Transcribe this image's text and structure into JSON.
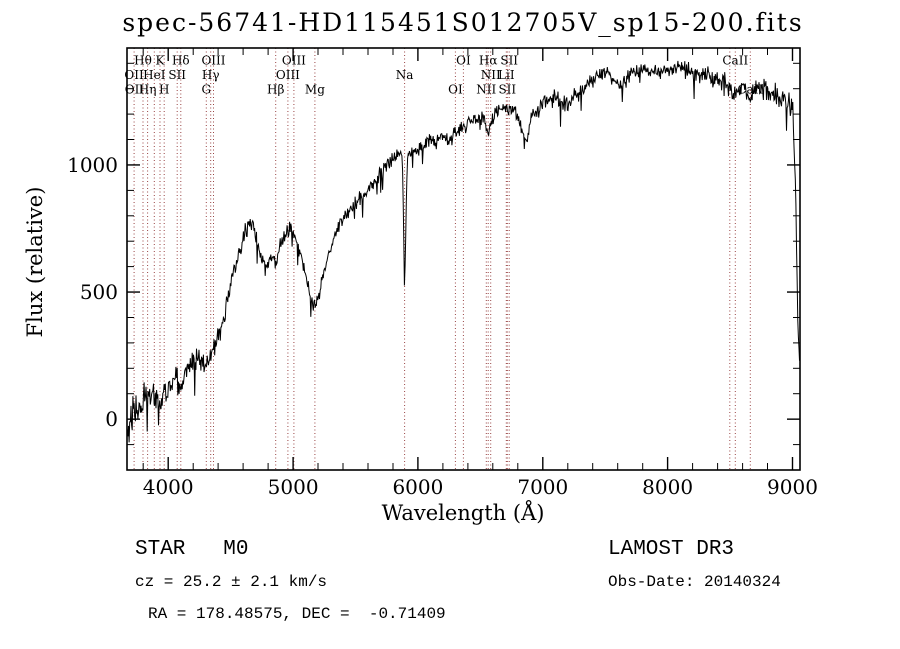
{
  "title": "spec-56741-HD115451S012705V_sp15-200.fits",
  "annotations": {
    "class_label": "STAR   M0",
    "survey": "LAMOST DR3",
    "cz": "cz = 25.2 ± 2.1 km/s",
    "obs_date": "Obs-Date: 20140324",
    "radec": "RA = 178.48575, DEC =  -0.71409"
  },
  "chart_data": {
    "type": "line",
    "title": "spec-56741-HD115451S012705V_sp15-200.fits",
    "xlabel": "Wavelength (Å)",
    "ylabel": "Flux (relative)",
    "xlim": [
      3670,
      9060
    ],
    "ylim": [
      -200,
      1460
    ],
    "x_ticks": [
      4000,
      5000,
      6000,
      7000,
      8000,
      9000
    ],
    "x_minor_step": 200,
    "y_ticks": [
      0,
      500,
      1000
    ],
    "y_minor_step": 100,
    "grid": false,
    "legend": false,
    "line_color": "#000000",
    "marker_color": "#994444",
    "spectral_line_markers": [
      3727,
      3798,
      3835,
      3889,
      3934,
      3968,
      4072,
      4101,
      4305,
      4340,
      4363,
      4861,
      4959,
      5007,
      5175,
      5893,
      6300,
      6364,
      6548,
      6563,
      6583,
      6708,
      6716,
      6731,
      8498,
      8542,
      8662
    ],
    "spectral_line_labels": [
      {
        "t": "Hθ",
        "wl": 3798,
        "row": 1
      },
      {
        "t": "K",
        "wl": 3934,
        "row": 1
      },
      {
        "t": "Hδ",
        "wl": 4101,
        "row": 1
      },
      {
        "t": "OIII",
        "wl": 4363,
        "row": 1
      },
      {
        "t": "OIII",
        "wl": 5007,
        "row": 1
      },
      {
        "t": "OI",
        "wl": 6364,
        "row": 1
      },
      {
        "t": "Hα",
        "wl": 6563,
        "row": 1
      },
      {
        "t": "SII",
        "wl": 6731,
        "row": 1
      },
      {
        "t": "CaII",
        "wl": 8542,
        "row": 1
      },
      {
        "t": "OII",
        "wl": 3727,
        "row": 2
      },
      {
        "t": "HeI",
        "wl": 3889,
        "row": 2
      },
      {
        "t": "SII",
        "wl": 4072,
        "row": 2
      },
      {
        "t": "Hγ",
        "wl": 4340,
        "row": 2
      },
      {
        "t": "OIII",
        "wl": 4959,
        "row": 2
      },
      {
        "t": "Na",
        "wl": 5893,
        "row": 2
      },
      {
        "t": "NII",
        "wl": 6583,
        "row": 2
      },
      {
        "t": "LiI",
        "wl": 6708,
        "row": 2
      },
      {
        "t": "OII",
        "wl": 3729,
        "row": 3
      },
      {
        "t": "Hη",
        "wl": 3835,
        "row": 3
      },
      {
        "t": "H",
        "wl": 3968,
        "row": 3
      },
      {
        "t": "G",
        "wl": 4305,
        "row": 3
      },
      {
        "t": "Hβ",
        "wl": 4861,
        "row": 3
      },
      {
        "t": "Mg",
        "wl": 5175,
        "row": 3
      },
      {
        "t": "OI",
        "wl": 6300,
        "row": 3
      },
      {
        "t": "NII",
        "wl": 6548,
        "row": 3
      },
      {
        "t": "SII",
        "wl": 6716,
        "row": 3
      },
      {
        "t": "CaII",
        "wl": 8662,
        "row": 3
      }
    ],
    "spectrum_envelope": [
      [
        3672,
        -80,
        40
      ],
      [
        3690,
        -30,
        55
      ],
      [
        3710,
        15,
        60
      ],
      [
        3730,
        60,
        55
      ],
      [
        3760,
        40,
        55
      ],
      [
        3800,
        72,
        50
      ],
      [
        3840,
        92,
        50
      ],
      [
        3880,
        100,
        45
      ],
      [
        3933,
        62,
        40
      ],
      [
        3970,
        100,
        45
      ],
      [
        4000,
        128,
        45
      ],
      [
        4040,
        150,
        42
      ],
      [
        4080,
        148,
        40
      ],
      [
        4101,
        122,
        36
      ],
      [
        4140,
        180,
        40
      ],
      [
        4180,
        208,
        38
      ],
      [
        4220,
        228,
        36
      ],
      [
        4260,
        240,
        34
      ],
      [
        4300,
        214,
        30
      ],
      [
        4340,
        258,
        34
      ],
      [
        4380,
        300,
        30
      ],
      [
        4420,
        360,
        30
      ],
      [
        4460,
        432,
        30
      ],
      [
        4500,
        520,
        28
      ],
      [
        4540,
        610,
        28
      ],
      [
        4580,
        680,
        26
      ],
      [
        4620,
        742,
        26
      ],
      [
        4650,
        775,
        24
      ],
      [
        4680,
        756,
        24
      ],
      [
        4710,
        700,
        24
      ],
      [
        4740,
        640,
        24
      ],
      [
        4780,
        590,
        24
      ],
      [
        4820,
        642,
        22
      ],
      [
        4861,
        616,
        22
      ],
      [
        4900,
        690,
        22
      ],
      [
        4940,
        730,
        22
      ],
      [
        4980,
        758,
        22
      ],
      [
        5020,
        720,
        22
      ],
      [
        5060,
        640,
        22
      ],
      [
        5100,
        558,
        22
      ],
      [
        5140,
        478,
        22
      ],
      [
        5175,
        440,
        20
      ],
      [
        5210,
        492,
        22
      ],
      [
        5250,
        590,
        22
      ],
      [
        5300,
        680,
        22
      ],
      [
        5360,
        750,
        22
      ],
      [
        5420,
        800,
        22
      ],
      [
        5480,
        840,
        22
      ],
      [
        5540,
        870,
        22
      ],
      [
        5600,
        905,
        22
      ],
      [
        5660,
        940,
        22
      ],
      [
        5720,
        975,
        22
      ],
      [
        5780,
        1010,
        22
      ],
      [
        5840,
        1040,
        20
      ],
      [
        5875,
        1050,
        16
      ],
      [
        5893,
        520,
        8
      ],
      [
        5915,
        1035,
        16
      ],
      [
        5960,
        1050,
        20
      ],
      [
        6020,
        1070,
        22
      ],
      [
        6080,
        1090,
        22
      ],
      [
        6140,
        1105,
        22
      ],
      [
        6200,
        1115,
        22
      ],
      [
        6250,
        1088,
        22
      ],
      [
        6300,
        1125,
        22
      ],
      [
        6340,
        1140,
        20
      ],
      [
        6380,
        1150,
        22
      ],
      [
        6430,
        1185,
        22
      ],
      [
        6480,
        1172,
        22
      ],
      [
        6530,
        1190,
        18
      ],
      [
        6563,
        1120,
        14
      ],
      [
        6600,
        1196,
        22
      ],
      [
        6650,
        1220,
        22
      ],
      [
        6700,
        1235,
        22
      ],
      [
        6750,
        1220,
        22
      ],
      [
        6800,
        1188,
        22
      ],
      [
        6870,
        1085,
        15
      ],
      [
        6910,
        1196,
        22
      ],
      [
        6960,
        1215,
        25
      ],
      [
        7020,
        1235,
        28
      ],
      [
        7080,
        1265,
        28
      ],
      [
        7140,
        1250,
        28
      ],
      [
        7200,
        1236,
        28
      ],
      [
        7260,
        1275,
        26
      ],
      [
        7320,
        1300,
        24
      ],
      [
        7380,
        1325,
        24
      ],
      [
        7440,
        1345,
        22
      ],
      [
        7500,
        1365,
        20
      ],
      [
        7560,
        1350,
        20
      ],
      [
        7615,
        1305,
        18
      ],
      [
        7660,
        1340,
        20
      ],
      [
        7720,
        1365,
        20
      ],
      [
        7780,
        1375,
        20
      ],
      [
        7840,
        1370,
        20
      ],
      [
        7900,
        1364,
        22
      ],
      [
        7960,
        1372,
        22
      ],
      [
        8020,
        1378,
        22
      ],
      [
        8080,
        1380,
        22
      ],
      [
        8140,
        1374,
        24
      ],
      [
        8200,
        1365,
        26
      ],
      [
        8260,
        1356,
        26
      ],
      [
        8320,
        1350,
        28
      ],
      [
        8380,
        1344,
        28
      ],
      [
        8440,
        1330,
        28
      ],
      [
        8498,
        1300,
        26
      ],
      [
        8542,
        1280,
        26
      ],
      [
        8600,
        1314,
        28
      ],
      [
        8662,
        1255,
        26
      ],
      [
        8710,
        1300,
        30
      ],
      [
        8770,
        1294,
        32
      ],
      [
        8830,
        1285,
        34
      ],
      [
        8890,
        1270,
        36
      ],
      [
        8950,
        1255,
        38
      ],
      [
        9000,
        1240,
        38
      ],
      [
        9025,
        900,
        24
      ],
      [
        9045,
        320,
        30
      ],
      [
        9056,
        230,
        20
      ]
    ],
    "noise_seed": 20140324,
    "sample_step": 5
  }
}
